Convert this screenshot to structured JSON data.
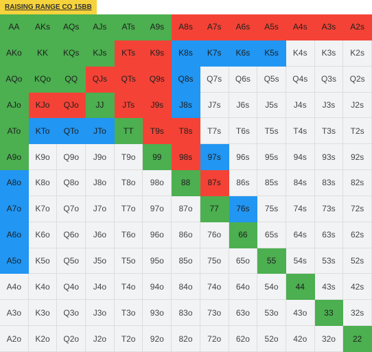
{
  "title": "RAISING RANGE CO 15BB",
  "colors": {
    "green": "#4caf50",
    "red": "#f44336",
    "blue": "#2196f3",
    "empty": "#f2f3f5",
    "tab": "#f6d33c"
  },
  "grid": [
    [
      [
        "AA",
        "g"
      ],
      [
        "AKs",
        "g"
      ],
      [
        "AQs",
        "g"
      ],
      [
        "AJs",
        "g"
      ],
      [
        "ATs",
        "g"
      ],
      [
        "A9s",
        "g"
      ],
      [
        "A8s",
        "r"
      ],
      [
        "A7s",
        "r"
      ],
      [
        "A6s",
        "r"
      ],
      [
        "A5s",
        "r"
      ],
      [
        "A4s",
        "r"
      ],
      [
        "A3s",
        "r"
      ],
      [
        "A2s",
        "r"
      ]
    ],
    [
      [
        "AKo",
        "g"
      ],
      [
        "KK",
        "g"
      ],
      [
        "KQs",
        "g"
      ],
      [
        "KJs",
        "g"
      ],
      [
        "KTs",
        "r"
      ],
      [
        "K9s",
        "r"
      ],
      [
        "K8s",
        "b"
      ],
      [
        "K7s",
        "b"
      ],
      [
        "K6s",
        "b"
      ],
      [
        "K5s",
        "b"
      ],
      [
        "K4s",
        "w"
      ],
      [
        "K3s",
        "w"
      ],
      [
        "K2s",
        "w"
      ]
    ],
    [
      [
        "AQo",
        "g"
      ],
      [
        "KQo",
        "g"
      ],
      [
        "QQ",
        "g"
      ],
      [
        "QJs",
        "r"
      ],
      [
        "QTs",
        "r"
      ],
      [
        "Q9s",
        "r"
      ],
      [
        "Q8s",
        "b"
      ],
      [
        "Q7s",
        "w"
      ],
      [
        "Q6s",
        "w"
      ],
      [
        "Q5s",
        "w"
      ],
      [
        "Q4s",
        "w"
      ],
      [
        "Q3s",
        "w"
      ],
      [
        "Q2s",
        "w"
      ]
    ],
    [
      [
        "AJo",
        "g"
      ],
      [
        "KJo",
        "r"
      ],
      [
        "QJo",
        "r"
      ],
      [
        "JJ",
        "g"
      ],
      [
        "JTs",
        "r"
      ],
      [
        "J9s",
        "r"
      ],
      [
        "J8s",
        "b"
      ],
      [
        "J7s",
        "w"
      ],
      [
        "J6s",
        "w"
      ],
      [
        "J5s",
        "w"
      ],
      [
        "J4s",
        "w"
      ],
      [
        "J3s",
        "w"
      ],
      [
        "J2s",
        "w"
      ]
    ],
    [
      [
        "ATo",
        "g"
      ],
      [
        "KTo",
        "b"
      ],
      [
        "QTo",
        "b"
      ],
      [
        "JTo",
        "b"
      ],
      [
        "TT",
        "g"
      ],
      [
        "T9s",
        "r"
      ],
      [
        "T8s",
        "r"
      ],
      [
        "T7s",
        "w"
      ],
      [
        "T6s",
        "w"
      ],
      [
        "T5s",
        "w"
      ],
      [
        "T4s",
        "w"
      ],
      [
        "T3s",
        "w"
      ],
      [
        "T2s",
        "w"
      ]
    ],
    [
      [
        "A9o",
        "g"
      ],
      [
        "K9o",
        "w"
      ],
      [
        "Q9o",
        "w"
      ],
      [
        "J9o",
        "w"
      ],
      [
        "T9o",
        "w"
      ],
      [
        "99",
        "g"
      ],
      [
        "98s",
        "r"
      ],
      [
        "97s",
        "b"
      ],
      [
        "96s",
        "w"
      ],
      [
        "95s",
        "w"
      ],
      [
        "94s",
        "w"
      ],
      [
        "93s",
        "w"
      ],
      [
        "92s",
        "w"
      ]
    ],
    [
      [
        "A8o",
        "b"
      ],
      [
        "K8o",
        "w"
      ],
      [
        "Q8o",
        "w"
      ],
      [
        "J8o",
        "w"
      ],
      [
        "T8o",
        "w"
      ],
      [
        "98o",
        "w"
      ],
      [
        "88",
        "g"
      ],
      [
        "87s",
        "r"
      ],
      [
        "86s",
        "w"
      ],
      [
        "85s",
        "w"
      ],
      [
        "84s",
        "w"
      ],
      [
        "83s",
        "w"
      ],
      [
        "82s",
        "w"
      ]
    ],
    [
      [
        "A7o",
        "b"
      ],
      [
        "K7o",
        "w"
      ],
      [
        "Q7o",
        "w"
      ],
      [
        "J7o",
        "w"
      ],
      [
        "T7o",
        "w"
      ],
      [
        "97o",
        "w"
      ],
      [
        "87o",
        "w"
      ],
      [
        "77",
        "g"
      ],
      [
        "76s",
        "b"
      ],
      [
        "75s",
        "w"
      ],
      [
        "74s",
        "w"
      ],
      [
        "73s",
        "w"
      ],
      [
        "72s",
        "w"
      ]
    ],
    [
      [
        "A6o",
        "b"
      ],
      [
        "K6o",
        "w"
      ],
      [
        "Q6o",
        "w"
      ],
      [
        "J6o",
        "w"
      ],
      [
        "T6o",
        "w"
      ],
      [
        "96o",
        "w"
      ],
      [
        "86o",
        "w"
      ],
      [
        "76o",
        "w"
      ],
      [
        "66",
        "g"
      ],
      [
        "65s",
        "w"
      ],
      [
        "64s",
        "w"
      ],
      [
        "63s",
        "w"
      ],
      [
        "62s",
        "w"
      ]
    ],
    [
      [
        "A5o",
        "b"
      ],
      [
        "K5o",
        "w"
      ],
      [
        "Q5o",
        "w"
      ],
      [
        "J5o",
        "w"
      ],
      [
        "T5o",
        "w"
      ],
      [
        "95o",
        "w"
      ],
      [
        "85o",
        "w"
      ],
      [
        "75o",
        "w"
      ],
      [
        "65o",
        "w"
      ],
      [
        "55",
        "g"
      ],
      [
        "54s",
        "w"
      ],
      [
        "53s",
        "w"
      ],
      [
        "52s",
        "w"
      ]
    ],
    [
      [
        "A4o",
        "w"
      ],
      [
        "K4o",
        "w"
      ],
      [
        "Q4o",
        "w"
      ],
      [
        "J4o",
        "w"
      ],
      [
        "T4o",
        "w"
      ],
      [
        "94o",
        "w"
      ],
      [
        "84o",
        "w"
      ],
      [
        "74o",
        "w"
      ],
      [
        "64o",
        "w"
      ],
      [
        "54o",
        "w"
      ],
      [
        "44",
        "g"
      ],
      [
        "43s",
        "w"
      ],
      [
        "42s",
        "w"
      ]
    ],
    [
      [
        "A3o",
        "w"
      ],
      [
        "K3o",
        "w"
      ],
      [
        "Q3o",
        "w"
      ],
      [
        "J3o",
        "w"
      ],
      [
        "T3o",
        "w"
      ],
      [
        "93o",
        "w"
      ],
      [
        "83o",
        "w"
      ],
      [
        "73o",
        "w"
      ],
      [
        "63o",
        "w"
      ],
      [
        "53o",
        "w"
      ],
      [
        "43o",
        "w"
      ],
      [
        "33",
        "g"
      ],
      [
        "32s",
        "w"
      ]
    ],
    [
      [
        "A2o",
        "w"
      ],
      [
        "K2o",
        "w"
      ],
      [
        "Q2o",
        "w"
      ],
      [
        "J2o",
        "w"
      ],
      [
        "T2o",
        "w"
      ],
      [
        "92o",
        "w"
      ],
      [
        "82o",
        "w"
      ],
      [
        "72o",
        "w"
      ],
      [
        "62o",
        "w"
      ],
      [
        "52o",
        "w"
      ],
      [
        "42o",
        "w"
      ],
      [
        "32o",
        "w"
      ],
      [
        "22",
        "g"
      ]
    ]
  ]
}
